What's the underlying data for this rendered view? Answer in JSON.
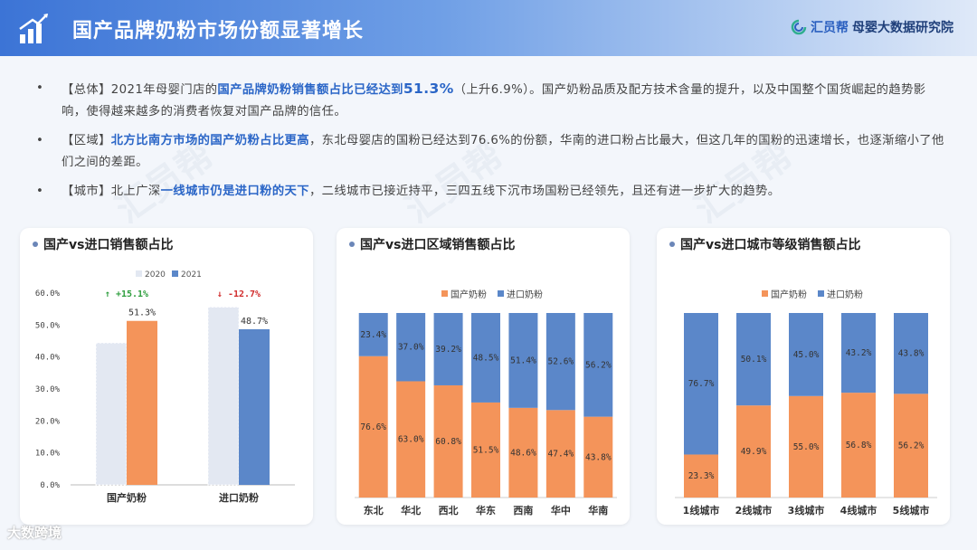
{
  "header": {
    "title": "国产品牌奶粉市场份额显著增长",
    "brand_name": "汇员帮",
    "brand_sub": "母婴大数据研究院"
  },
  "bullets": [
    {
      "tag": "【总体】",
      "pre": "2021年母婴门店的",
      "hl": "国产品牌奶粉销售额占比已经达到",
      "big": "51.3%",
      "post": "（上升6.9%）。国产奶粉品质及配方技术含量的提升，以及中国整个国货崛起的趋势影响，使得越来越多的消费者恢复对国产品牌的信任。"
    },
    {
      "tag": "【区域】",
      "hl": "北方比南方市场的国产奶粉占比更高",
      "post": "，东北母婴店的国粉已经达到76.6%的份额，华南的进口粉占比最大，但这几年的国粉的迅速增长，也逐渐缩小了他们之间的差距。"
    },
    {
      "tag": "【城市】",
      "pre": "北上广深",
      "hl": "一线城市仍是进口粉的天下",
      "post": "，二线城市已接近持平，三四五线下沉市场国粉已经领先，且还有进一步扩大的趋势。"
    }
  ],
  "footer": {
    "logo_text": "大数跨境"
  },
  "watermark": "汇员帮",
  "colors": {
    "domestic": "#f4945a",
    "import": "#5b87c9",
    "y2020": "#e3e8f2",
    "up": "#2e9e3e",
    "down": "#d12b2b"
  },
  "chart_data": [
    {
      "type": "bar",
      "title": "国产vs进口销售额占比",
      "categories": [
        "国产奶粉",
        "进口奶粉"
      ],
      "series": [
        {
          "name": "2020",
          "values": [
            44.4,
            55.6
          ]
        },
        {
          "name": "2021",
          "values": [
            51.3,
            48.7
          ]
        }
      ],
      "data_labels": [
        "51.3%",
        "48.7%"
      ],
      "annotations": [
        "↑ +15.1%",
        "↓ -12.7%"
      ],
      "y_ticks": [
        "0.0%",
        "10.0%",
        "20.0%",
        "30.0%",
        "40.0%",
        "50.0%",
        "60.0%"
      ],
      "ylim": [
        0,
        60
      ],
      "legend": "top"
    },
    {
      "type": "bar",
      "stacked": true,
      "title": "国产vs进口区域销售额占比",
      "categories": [
        "东北",
        "华北",
        "西北",
        "华东",
        "西南",
        "华中",
        "华南"
      ],
      "series": [
        {
          "name": "国产奶粉",
          "values": [
            76.6,
            63.0,
            60.8,
            51.5,
            48.6,
            47.4,
            43.8
          ]
        },
        {
          "name": "进口奶粉",
          "values": [
            23.4,
            37.0,
            39.2,
            48.5,
            51.4,
            52.6,
            56.2
          ]
        }
      ],
      "ylim": [
        0,
        100
      ],
      "legend": "top"
    },
    {
      "type": "bar",
      "stacked": true,
      "title": "国产vs进口城市等级销售额占比",
      "categories": [
        "1线城市",
        "2线城市",
        "3线城市",
        "4线城市",
        "5线城市"
      ],
      "series": [
        {
          "name": "国产奶粉",
          "values": [
            23.3,
            49.9,
            55.0,
            56.8,
            56.2
          ]
        },
        {
          "name": "进口奶粉",
          "values": [
            76.7,
            50.1,
            45.0,
            43.2,
            43.8
          ]
        }
      ],
      "ylim": [
        0,
        100
      ],
      "legend": "top"
    }
  ]
}
